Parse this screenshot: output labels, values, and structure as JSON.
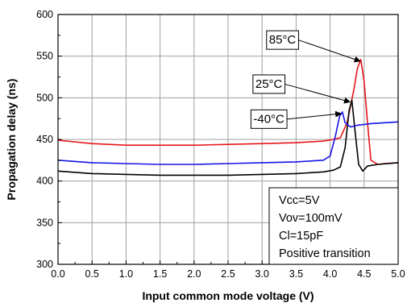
{
  "chart_data": {
    "type": "line",
    "title": "",
    "xlabel": "Input common mode voltage (V)",
    "ylabel": "Propagation delay (ns)",
    "xlim": [
      0.0,
      5.0
    ],
    "ylim": [
      300,
      600
    ],
    "xticks": [
      "0.0",
      "0.5",
      "1.0",
      "1.5",
      "2.0",
      "2.5",
      "3.0",
      "3.5",
      "4.0",
      "4.5",
      "5.0"
    ],
    "yticks": [
      "300",
      "350",
      "400",
      "450",
      "500",
      "550",
      "600"
    ],
    "grid": true,
    "series": [
      {
        "name": "85°C",
        "color": "#e8141b",
        "x": [
          0.0,
          0.5,
          1.0,
          1.5,
          2.0,
          2.5,
          3.0,
          3.5,
          3.9,
          4.05,
          4.15,
          4.25,
          4.35,
          4.4,
          4.45,
          4.5,
          4.55,
          4.6,
          4.7,
          4.8,
          5.0
        ],
        "y": [
          449,
          445,
          443,
          443,
          443,
          444,
          445,
          446,
          448,
          450,
          452,
          470,
          510,
          535,
          546,
          520,
          470,
          425,
          420,
          421,
          422
        ]
      },
      {
        "name": "25°C",
        "color": "#000000",
        "x": [
          0.0,
          0.5,
          1.0,
          1.5,
          2.0,
          2.5,
          3.0,
          3.5,
          3.9,
          4.05,
          4.15,
          4.22,
          4.28,
          4.32,
          4.36,
          4.42,
          4.48,
          4.55,
          4.7,
          5.0
        ],
        "y": [
          412,
          409,
          408,
          407,
          407,
          407,
          408,
          409,
          411,
          413,
          417,
          440,
          485,
          497,
          465,
          420,
          412,
          418,
          420,
          422
        ]
      },
      {
        "name": "-40°C",
        "color": "#1414e6",
        "x": [
          0.0,
          0.5,
          1.0,
          1.5,
          2.0,
          2.5,
          3.0,
          3.5,
          3.9,
          4.0,
          4.08,
          4.14,
          4.18,
          4.22,
          4.3,
          4.4,
          4.6,
          4.8,
          5.0
        ],
        "y": [
          425,
          422,
          421,
          420,
          420,
          421,
          422,
          423,
          425,
          430,
          455,
          478,
          483,
          470,
          465,
          467,
          469,
          470,
          471
        ]
      }
    ],
    "annotations": [
      {
        "label": "85°C",
        "series": "85°C",
        "text_at": [
          3.3,
          565
        ],
        "point_at": [
          4.44,
          544
        ]
      },
      {
        "label": "25°C",
        "series": "25°C",
        "text_at": [
          3.1,
          512
        ],
        "point_at": [
          4.29,
          495
        ]
      },
      {
        "label": "-40°C",
        "series": "-40°C",
        "text_at": [
          3.1,
          470
        ],
        "point_at": [
          4.16,
          481
        ]
      }
    ],
    "note_lines": [
      "Vcc=5V",
      "Vov=100mV",
      "Cl=15pF",
      "Positive transition"
    ],
    "note_placement": "bottom-right"
  }
}
